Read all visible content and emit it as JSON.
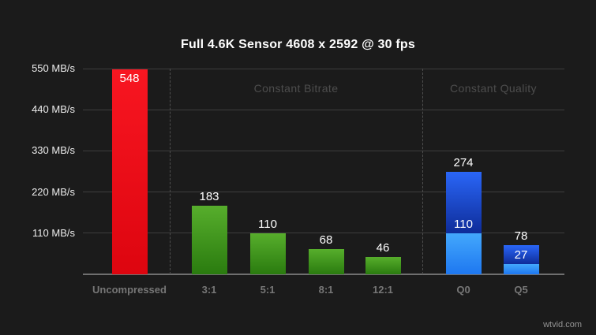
{
  "title": "Full 4.6K Sensor 4608 x 2592 @ 30 fps",
  "watermark": "wtvid.com",
  "colors": {
    "background": "#1b1b1b",
    "title": "#ffffff",
    "grid_line": "#3e3e3e",
    "axis_line": "#6f6f6f",
    "section_divider": "#4f4f4f",
    "y_label": "#ededed",
    "x_label": "#767676",
    "section_label": "#4d4d4d",
    "value_label": "#ffffff",
    "watermark": "#949494",
    "bar_red": [
      "#f81621",
      "#dd050f"
    ],
    "bar_green": [
      "#57ae2c",
      "#2a7b0f"
    ],
    "bar_blue_max": [
      "#2a66f7",
      "#0e2c99"
    ],
    "bar_blue_min": [
      "#43a8fd",
      "#1e77f0"
    ]
  },
  "chart_data": {
    "type": "bar",
    "title": "Full 4.6K Sensor 4608 x 2592 @ 30 fps",
    "unit": "MB/s",
    "ylim": [
      0,
      550
    ],
    "yticks": [
      550,
      440,
      330,
      220,
      110
    ],
    "ytick_labels": [
      "550 MB/s",
      "440 MB/s",
      "330 MB/s",
      "220 MB/s",
      "110 MB/s"
    ],
    "grid": true,
    "legend": "none",
    "sections": [
      {
        "label": "Constant Bitrate",
        "categories": [
          "3:1",
          "5:1",
          "8:1",
          "12:1"
        ]
      },
      {
        "label": "Constant Quality",
        "categories": [
          "Q0",
          "Q5"
        ]
      }
    ],
    "bars": [
      {
        "category": "Uncompressed",
        "value": 548,
        "color": "red"
      },
      {
        "category": "3:1",
        "value": 183,
        "color": "green"
      },
      {
        "category": "5:1",
        "value": 110,
        "color": "green"
      },
      {
        "category": "8:1",
        "value": 68,
        "color": "green"
      },
      {
        "category": "12:1",
        "value": 46,
        "color": "green"
      },
      {
        "category": "Q0",
        "value": 274,
        "min_value": 110,
        "color": "blue"
      },
      {
        "category": "Q5",
        "value": 78,
        "min_value": 27,
        "color": "blue"
      }
    ]
  }
}
